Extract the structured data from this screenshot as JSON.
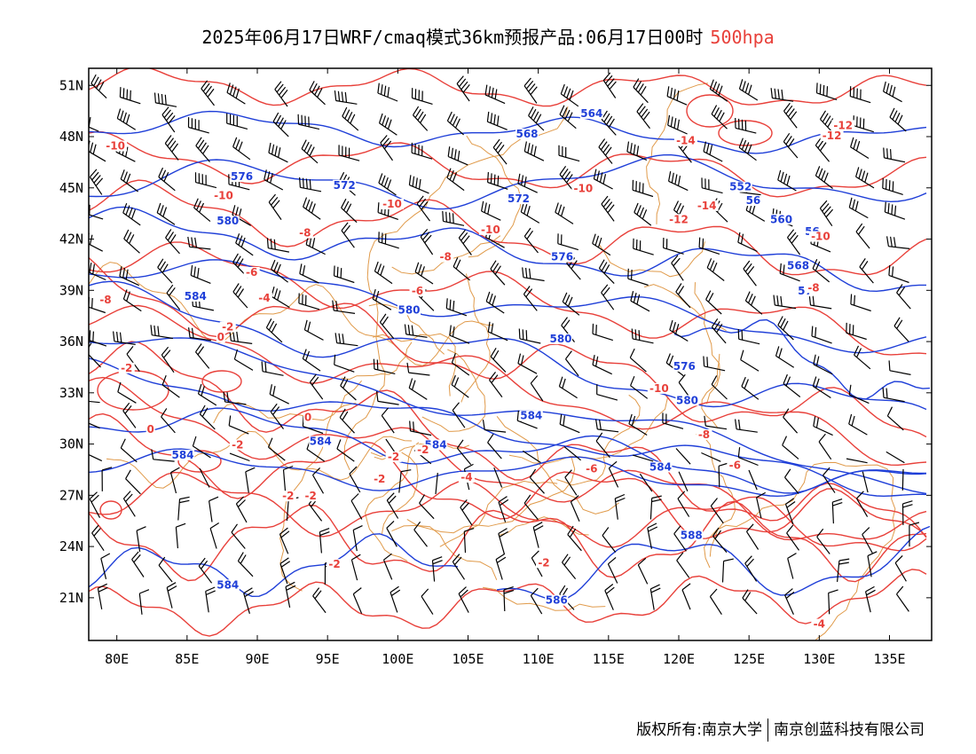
{
  "title": {
    "main": "2025年06月17日WRF/cmaq模式36km预报产品:06月17日00时",
    "level": "500hpa"
  },
  "axes": {
    "lon_labels": [
      "80E",
      "85E",
      "90E",
      "95E",
      "100E",
      "105E",
      "110E",
      "115E",
      "120E",
      "125E",
      "130E",
      "135E"
    ],
    "lat_labels": [
      "51N",
      "48N",
      "45N",
      "42N",
      "39N",
      "36N",
      "33N",
      "30N",
      "27N",
      "24N",
      "21N"
    ],
    "lon_range": [
      78,
      138
    ],
    "lat_range": [
      18.5,
      52
    ]
  },
  "colors": {
    "height_contour": "#1f3fd8",
    "temp_contour": "#e8403a",
    "border": "#e09a4a",
    "wind_barb": "#000000",
    "level_text": "#e8403a"
  },
  "height_labels": [
    {
      "t": "564",
      "lon": 113.8,
      "lat": 49.2
    },
    {
      "t": "568",
      "lon": 109.2,
      "lat": 48.0
    },
    {
      "t": "576",
      "lon": 88.9,
      "lat": 45.5
    },
    {
      "t": "572",
      "lon": 96.2,
      "lat": 45.0
    },
    {
      "t": "572",
      "lon": 108.6,
      "lat": 44.2
    },
    {
      "t": "552",
      "lon": 124.4,
      "lat": 44.9
    },
    {
      "t": "56",
      "lon": 125.3,
      "lat": 44.1
    },
    {
      "t": "560",
      "lon": 127.3,
      "lat": 43.0
    },
    {
      "t": "56",
      "lon": 129.5,
      "lat": 42.3
    },
    {
      "t": "580",
      "lon": 87.9,
      "lat": 42.9
    },
    {
      "t": "576",
      "lon": 111.7,
      "lat": 40.8
    },
    {
      "t": "568",
      "lon": 128.5,
      "lat": 40.3
    },
    {
      "t": "57",
      "lon": 129.0,
      "lat": 38.8
    },
    {
      "t": "584",
      "lon": 85.6,
      "lat": 38.5
    },
    {
      "t": "580",
      "lon": 100.8,
      "lat": 37.7
    },
    {
      "t": "580",
      "lon": 111.6,
      "lat": 36.0
    },
    {
      "t": "576",
      "lon": 120.4,
      "lat": 34.4
    },
    {
      "t": "580",
      "lon": 120.6,
      "lat": 32.4
    },
    {
      "t": "584",
      "lon": 109.5,
      "lat": 31.5
    },
    {
      "t": "584",
      "lon": 94.5,
      "lat": 30.0
    },
    {
      "t": "584",
      "lon": 102.7,
      "lat": 29.8
    },
    {
      "t": "584",
      "lon": 84.7,
      "lat": 29.2
    },
    {
      "t": "584",
      "lon": 118.7,
      "lat": 28.5
    },
    {
      "t": "588",
      "lon": 120.9,
      "lat": 24.5
    },
    {
      "t": "584",
      "lon": 87.9,
      "lat": 21.6
    },
    {
      "t": "586",
      "lon": 111.3,
      "lat": 20.7
    }
  ],
  "temp_labels": [
    {
      "t": "-10",
      "lon": 79.9,
      "lat": 47.3
    },
    {
      "t": "-10",
      "lon": 87.6,
      "lat": 44.4
    },
    {
      "t": "-10",
      "lon": 99.6,
      "lat": 43.9
    },
    {
      "t": "-10",
      "lon": 113.2,
      "lat": 44.8
    },
    {
      "t": "-10",
      "lon": 106.6,
      "lat": 42.4
    },
    {
      "t": "-14",
      "lon": 120.5,
      "lat": 47.6
    },
    {
      "t": "-12",
      "lon": 131.7,
      "lat": 48.5
    },
    {
      "t": "-12",
      "lon": 130.9,
      "lat": 47.9
    },
    {
      "t": "-14",
      "lon": 122.0,
      "lat": 43.8
    },
    {
      "t": "-12",
      "lon": 120.0,
      "lat": 43.0
    },
    {
      "t": "-10",
      "lon": 130.1,
      "lat": 42.0
    },
    {
      "t": "-8",
      "lon": 93.4,
      "lat": 42.2
    },
    {
      "t": "-8",
      "lon": 103.4,
      "lat": 40.8
    },
    {
      "t": "-8",
      "lon": 79.2,
      "lat": 38.3
    },
    {
      "t": "-6",
      "lon": 89.6,
      "lat": 39.9
    },
    {
      "t": "-6",
      "lon": 101.4,
      "lat": 38.8
    },
    {
      "t": "-8",
      "lon": 129.6,
      "lat": 39.0
    },
    {
      "t": "-4",
      "lon": 90.5,
      "lat": 38.4
    },
    {
      "t": "-2",
      "lon": 87.9,
      "lat": 36.7
    },
    {
      "t": "0",
      "lon": 87.4,
      "lat": 36.1
    },
    {
      "t": "-2",
      "lon": 80.7,
      "lat": 34.3
    },
    {
      "t": "0",
      "lon": 93.6,
      "lat": 31.4
    },
    {
      "t": "-2",
      "lon": 88.6,
      "lat": 29.8
    },
    {
      "t": "0",
      "lon": 82.4,
      "lat": 30.7
    },
    {
      "t": "-10",
      "lon": 118.6,
      "lat": 33.1
    },
    {
      "t": "-8",
      "lon": 121.8,
      "lat": 30.4
    },
    {
      "t": "-6",
      "lon": 124.0,
      "lat": 28.6
    },
    {
      "t": "-2",
      "lon": 99.7,
      "lat": 29.1
    },
    {
      "t": "-2",
      "lon": 98.7,
      "lat": 27.8
    },
    {
      "t": "-2",
      "lon": 101.8,
      "lat": 29.5
    },
    {
      "t": "-4",
      "lon": 104.9,
      "lat": 27.9
    },
    {
      "t": "-6",
      "lon": 113.8,
      "lat": 28.4
    },
    {
      "t": "-2",
      "lon": 92.2,
      "lat": 26.8
    },
    {
      "t": "-2",
      "lon": 93.8,
      "lat": 26.8
    },
    {
      "t": "-2",
      "lon": 95.5,
      "lat": 22.8
    },
    {
      "t": "-2",
      "lon": 110.4,
      "lat": 22.9
    },
    {
      "t": "-4",
      "lon": 130.0,
      "lat": 19.3
    }
  ],
  "footer": {
    "left": "版权所有:南京大学",
    "right": "南京创蓝科技有限公司"
  }
}
